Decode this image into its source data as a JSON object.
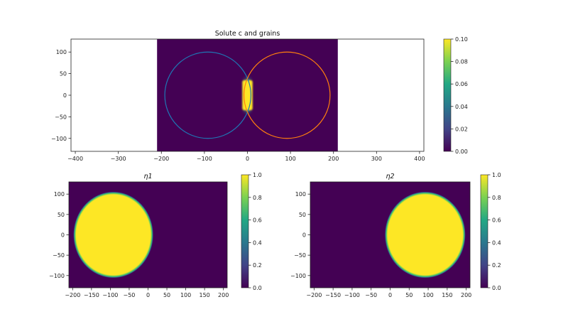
{
  "chart_data": [
    {
      "type": "heatmap",
      "title": "Solute c and grains",
      "xlim": [
        -410,
        410
      ],
      "ylim": [
        -130,
        130
      ],
      "image_extent": {
        "x": [
          -210,
          210
        ],
        "y": [
          -130,
          130
        ]
      },
      "xticks": [
        -400,
        -300,
        -200,
        -100,
        0,
        100,
        200,
        300,
        400
      ],
      "yticks": [
        -100,
        -50,
        0,
        50,
        100
      ],
      "colormap": "viridis",
      "colorbar": {
        "range": [
          0,
          0.1
        ],
        "ticks": [
          "0.00",
          "0.02",
          "0.04",
          "0.06",
          "0.08",
          "0.10"
        ]
      },
      "field": {
        "background": 0.0,
        "high_region": {
          "x": [
            -12,
            12
          ],
          "y": [
            -35,
            35
          ],
          "value": 0.1
        }
      },
      "contours": [
        {
          "center": [
            -92,
            0
          ],
          "radius": 100,
          "color": "#1f77b4"
        },
        {
          "center": [
            92,
            0
          ],
          "radius": 100,
          "color": "#ff7f0e"
        }
      ]
    },
    {
      "type": "heatmap",
      "title": "η1",
      "xlim": [
        -210,
        210
      ],
      "ylim": [
        -130,
        130
      ],
      "xticks": [
        -200,
        -150,
        -100,
        -50,
        0,
        50,
        100,
        150,
        200
      ],
      "yticks": [
        -100,
        -50,
        0,
        50,
        100
      ],
      "colormap": "viridis",
      "colorbar": {
        "range": [
          0,
          1
        ],
        "ticks": [
          "0.0",
          "0.2",
          "0.4",
          "0.6",
          "0.8",
          "1.0"
        ]
      },
      "field": {
        "background": 0.0,
        "grain": {
          "center": [
            -92,
            0
          ],
          "radius": 100,
          "value": 1.0
        }
      }
    },
    {
      "type": "heatmap",
      "title": "η2",
      "xlim": [
        -210,
        210
      ],
      "ylim": [
        -130,
        130
      ],
      "xticks": [
        -200,
        -150,
        -100,
        -50,
        0,
        50,
        100,
        150,
        200
      ],
      "yticks": [
        -100,
        -50,
        0,
        50,
        100
      ],
      "colormap": "viridis",
      "colorbar": {
        "range": [
          0,
          1
        ],
        "ticks": [
          "0.0",
          "0.2",
          "0.4",
          "0.6",
          "0.8",
          "1.0"
        ]
      },
      "field": {
        "background": 0.0,
        "grain": {
          "center": [
            92,
            0
          ],
          "radius": 100,
          "value": 1.0
        }
      }
    }
  ]
}
